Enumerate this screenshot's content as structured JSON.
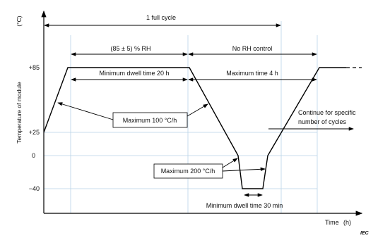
{
  "axes": {
    "y_label": "Temperature of module",
    "y_unit": "(°C)",
    "x_label": "Time",
    "x_unit": "(h)",
    "y_ticks": [
      "+85",
      "+25",
      "0",
      "−40"
    ]
  },
  "annotations": {
    "full_cycle": "1 full cycle",
    "rh_range": "(85 ± 5) % RH",
    "no_rh": "No RH control",
    "dwell_20h": "Minimum dwell time 20 h",
    "max_4h": "Maximum time 4 h",
    "max_100": "Maximum 100 °C/h",
    "max_200": "Maximum 200 °C/h",
    "dwell_30min": "Minimum dwell time 30 min",
    "continue": [
      "Continue for specific",
      "number of cycles"
    ]
  },
  "credit": "IEC"
}
